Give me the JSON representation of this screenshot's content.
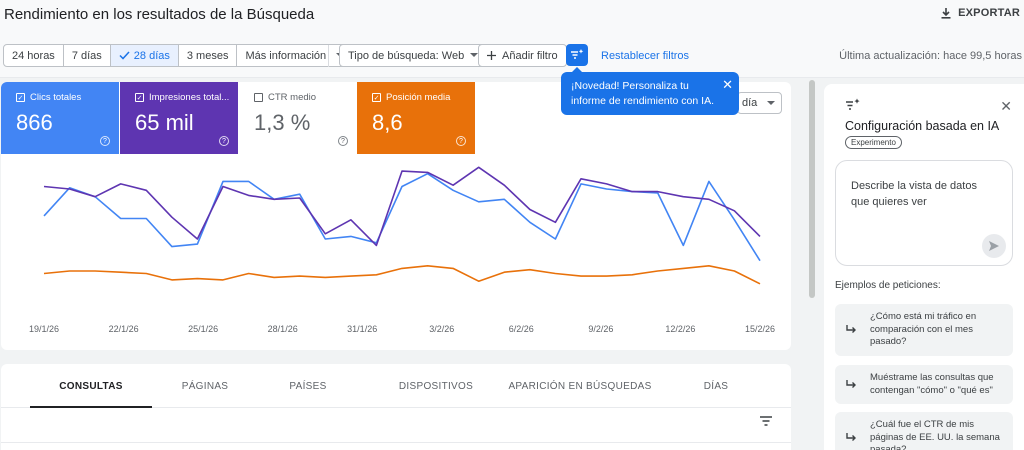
{
  "header": {
    "title": "Rendimiento en los resultados de la Búsqueda",
    "export_label": "EXPORTAR"
  },
  "toolbar": {
    "date_ranges": [
      {
        "label": "24 horas",
        "active": false
      },
      {
        "label": "7 días",
        "active": false
      },
      {
        "label": "28 días",
        "active": true
      },
      {
        "label": "3 meses",
        "active": false
      },
      {
        "label": "Más información",
        "active": false
      }
    ],
    "search_type": "Tipo de búsqueda: Web",
    "add_filter": "Añadir filtro",
    "reset_filters": "Restablecer filtros",
    "last_update": "Última actualización: hace 99,5 horas"
  },
  "tooltip": {
    "text": "¡Novedad! Personaliza tu informe de rendimiento con IA."
  },
  "metrics": {
    "clicks": {
      "label": "Clics totales",
      "value": "866"
    },
    "impressions": {
      "label": "Impresiones total...",
      "value": "65 mil"
    },
    "ctr": {
      "label": "CTR medio",
      "value": "1,3 %"
    },
    "position": {
      "label": "Posición media",
      "value": "8,6"
    }
  },
  "granularity": "día",
  "chart_data": {
    "type": "line",
    "x_ticks": [
      "19/1/26",
      "22/1/26",
      "25/1/26",
      "28/1/26",
      "31/1/26",
      "3/2/26",
      "6/2/26",
      "9/2/26",
      "12/2/26",
      "15/2/26"
    ],
    "series": [
      {
        "name": "Clics totales",
        "color": "#4285f4",
        "values": [
          61,
          83,
          76,
          59,
          59,
          37,
          39,
          88,
          88,
          74,
          78,
          43,
          45,
          40,
          84,
          94,
          81,
          72,
          74,
          56,
          43,
          86,
          82,
          80,
          79,
          38,
          88,
          58,
          26
        ]
      },
      {
        "name": "Impresiones totales",
        "color": "#5e35b1",
        "values": [
          84,
          82,
          76,
          86,
          81,
          60,
          43,
          84,
          77,
          74,
          75,
          47,
          58,
          38,
          96,
          95,
          85,
          99,
          85,
          66,
          56,
          90,
          86,
          80,
          80,
          76,
          74,
          65,
          45
        ]
      },
      {
        "name": "Posición media",
        "color": "#e8710a",
        "values": [
          16,
          18,
          18,
          17,
          16,
          11,
          12,
          11,
          16,
          13,
          14,
          13,
          14,
          15,
          20,
          22,
          20,
          10,
          17,
          19,
          16,
          14,
          14,
          15,
          18,
          20,
          22,
          18,
          8
        ]
      }
    ]
  },
  "tabs": [
    "CONSULTAS",
    "PÁGINAS",
    "PAÍSES",
    "DISPOSITIVOS",
    "APARICIÓN EN BÚSQUEDAS",
    "DÍAS"
  ],
  "panel": {
    "title": "Configuración basada en IA",
    "badge": "Experimento",
    "prompt_placeholder": "Describe la vista de datos que quieres ver",
    "examples_title": "Ejemplos de peticiones:",
    "examples": [
      "¿Cómo está mi tráfico en comparación con el mes pasado?",
      "Muéstrame las consultas que contengan \"cómo\" o \"qué es\"",
      "¿Cuál fue el CTR de mis páginas de EE. UU. la semana pasada?"
    ]
  }
}
